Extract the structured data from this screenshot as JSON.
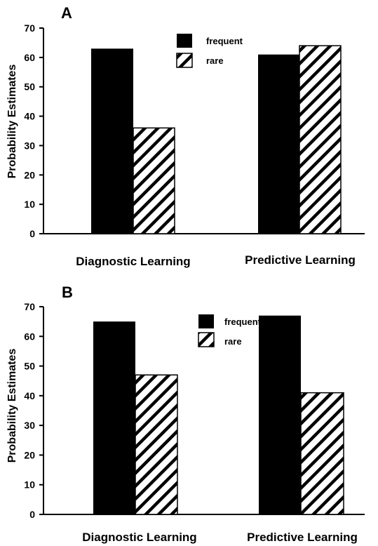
{
  "chart_data": [
    {
      "type": "bar",
      "panel_label": "A",
      "ylabel": "Probability Estimates",
      "ylim": [
        0,
        70
      ],
      "yticks": [
        0,
        10,
        20,
        30,
        40,
        50,
        60,
        70
      ],
      "categories": [
        "Diagnostic Learning",
        "Predictive Learning"
      ],
      "series": [
        {
          "name": "frequent",
          "values": [
            63,
            61
          ],
          "fill": "solid",
          "color": "#000000"
        },
        {
          "name": "rare",
          "values": [
            36,
            64
          ],
          "fill": "hatched",
          "color": "#000000"
        }
      ],
      "legend_position": "top-center",
      "grid": false
    },
    {
      "type": "bar",
      "panel_label": "B",
      "ylabel": "Probability Estimates",
      "ylim": [
        0,
        70
      ],
      "yticks": [
        0,
        10,
        20,
        30,
        40,
        50,
        60,
        70
      ],
      "categories": [
        "Diagnostic Learning",
        "Predictive Learning"
      ],
      "series": [
        {
          "name": "frequent",
          "values": [
            65,
            67
          ],
          "fill": "solid",
          "color": "#000000"
        },
        {
          "name": "rare",
          "values": [
            47,
            41
          ],
          "fill": "hatched",
          "color": "#000000"
        }
      ],
      "legend_position": "top-center",
      "grid": false
    }
  ]
}
